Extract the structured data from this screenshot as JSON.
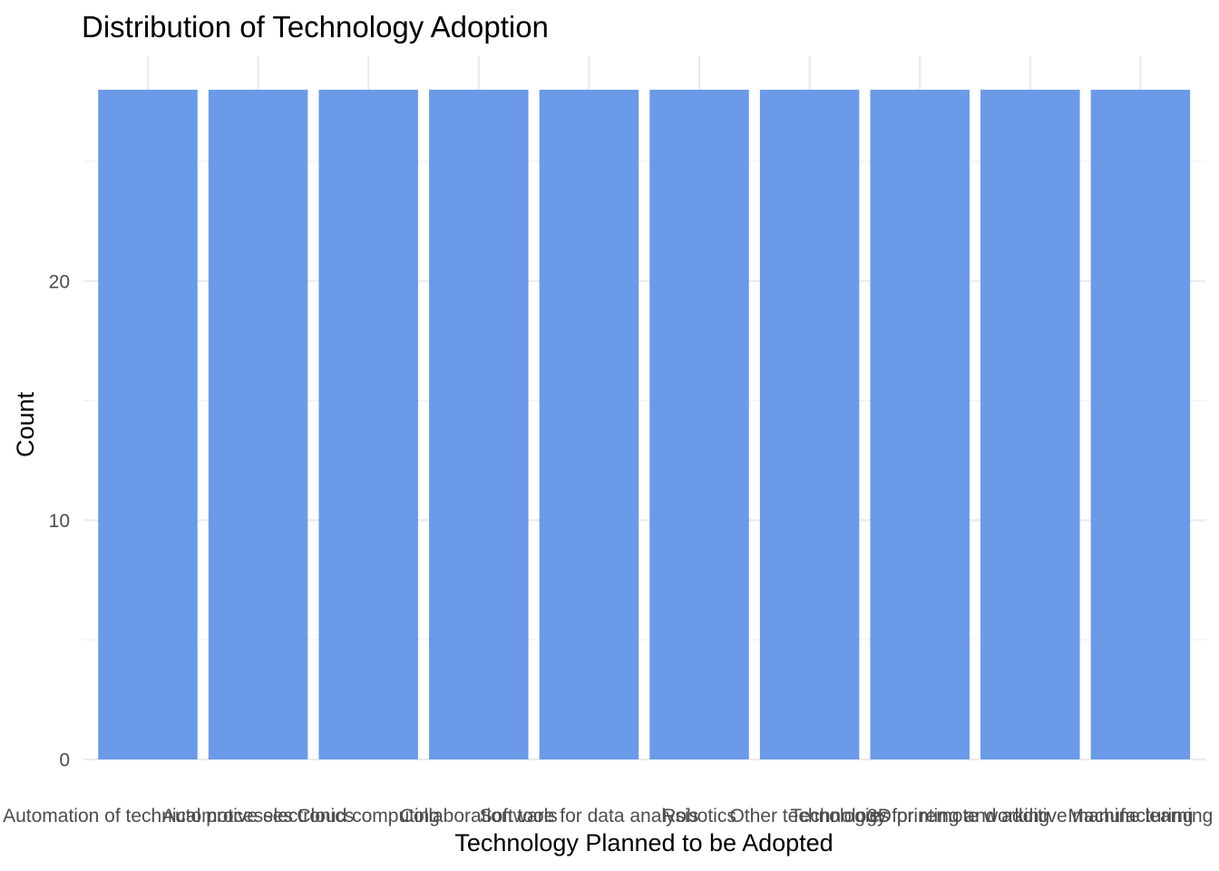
{
  "chart_data": {
    "type": "bar",
    "title": "Distribution of Technology Adoption",
    "xlabel": "Technology Planned to be Adopted",
    "ylabel": "Count",
    "categories": [
      "Automation of technical processes",
      "Automotive electronics",
      "Cloud computing",
      "Collaboration tools",
      "Software for data analysis",
      "Robotics",
      "Other technologies",
      "Technology for remote working",
      "3D printing and additive manufacturing",
      "Machine learning"
    ],
    "values": [
      28,
      28,
      28,
      28,
      28,
      28,
      28,
      28,
      28,
      28
    ],
    "ylim": [
      0,
      29.4
    ],
    "yticks": [
      0,
      10,
      20
    ],
    "grid": true,
    "legend": "none",
    "colors": {
      "bar": "#6b9ae9",
      "grid_major": "#ebebeb",
      "grid_minor": "#f2f2f2",
      "tick_text": "#4d4d4d",
      "title_text": "#000000"
    }
  }
}
